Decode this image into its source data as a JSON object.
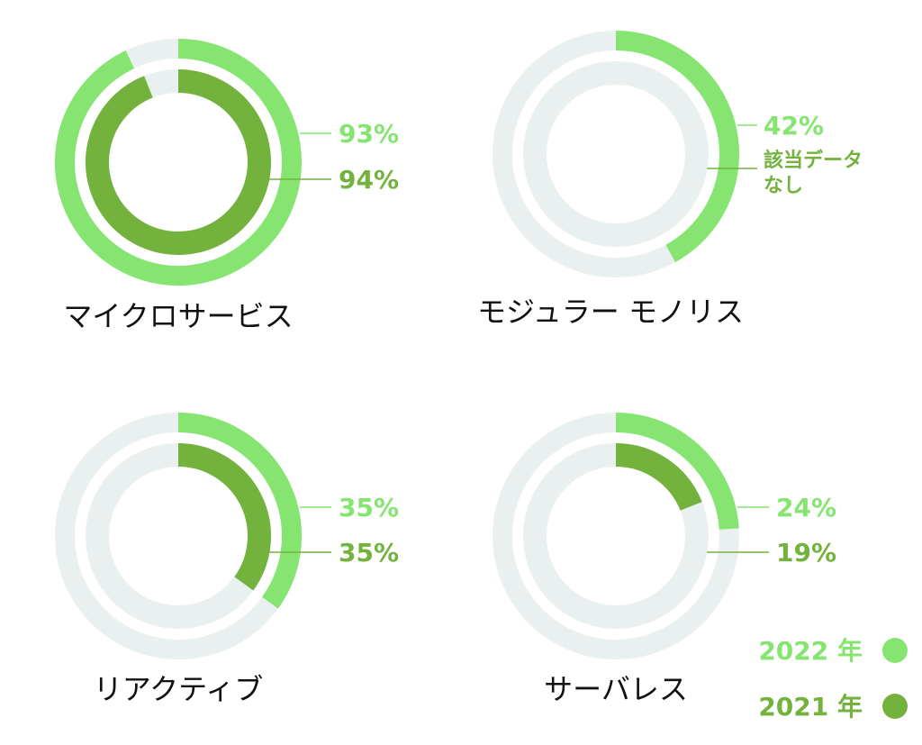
{
  "colors": {
    "y2022": "#85e570",
    "y2021": "#74b23e",
    "track": "#eaf0f0",
    "label": "#111111"
  },
  "chart_data": [
    {
      "type": "donut",
      "title": "マイクロサービス",
      "series": [
        {
          "name": "2022 年",
          "value": 93,
          "label": "93%"
        },
        {
          "name": "2021 年",
          "value": 94,
          "label": "94%"
        }
      ]
    },
    {
      "type": "donut",
      "title": "モジュラー モノリス",
      "series": [
        {
          "name": "2022 年",
          "value": 42,
          "label": "42%"
        },
        {
          "name": "2021 年",
          "value": null,
          "label": "該当データなし"
        }
      ]
    },
    {
      "type": "donut",
      "title": "リアクティブ",
      "series": [
        {
          "name": "2022 年",
          "value": 35,
          "label": "35%"
        },
        {
          "name": "2021 年",
          "value": 35,
          "label": "35%"
        }
      ]
    },
    {
      "type": "donut",
      "title": "サーバレス",
      "series": [
        {
          "name": "2022 年",
          "value": 24,
          "label": "24%"
        },
        {
          "name": "2021 年",
          "value": 19,
          "label": "19%"
        }
      ]
    }
  ],
  "legend": {
    "items": [
      {
        "label": "2022 年",
        "color": "#85e570"
      },
      {
        "label": "2021 年",
        "color": "#74b23e"
      }
    ]
  }
}
